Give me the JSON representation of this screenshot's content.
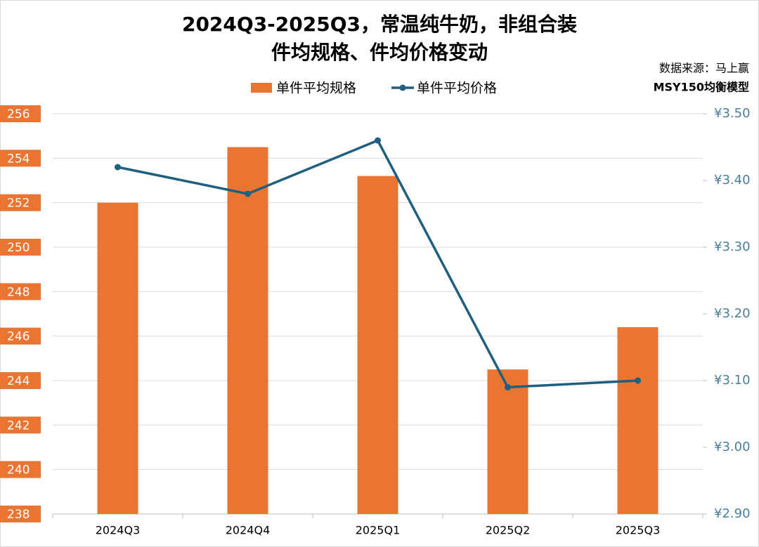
{
  "chart_data": {
    "type": "bar_line",
    "title": [
      "2024Q3-2025Q3，常温纯牛奶，非组合装",
      "件均规格、件均价格变动"
    ],
    "source": [
      "数据来源：马上赢",
      "MSY150均衡模型"
    ],
    "categories": [
      "2024Q3",
      "2024Q4",
      "2025Q1",
      "2025Q2",
      "2025Q3"
    ],
    "series": [
      {
        "name": "单件平均规格",
        "color": "#ea7533",
        "type": "bar",
        "values": [
          252.0,
          254.5,
          253.2,
          244.5,
          246.4
        ]
      },
      {
        "name": "单件平均价格",
        "color": "#1f5f7f",
        "type": "line",
        "axis": "y2",
        "values": [
          3.42,
          3.38,
          3.46,
          3.09,
          3.1
        ]
      }
    ],
    "ylim": [
      238,
      256
    ],
    "yticks": [
      238,
      240,
      242,
      244,
      246,
      248,
      250,
      252,
      254,
      256
    ],
    "y2lim": [
      2.9,
      3.5
    ],
    "y2ticks": [
      {
        "value": 2.9,
        "label": "¥2.90"
      },
      {
        "value": 3.0,
        "label": "¥3.00"
      },
      {
        "value": 3.1,
        "label": "¥3.10"
      },
      {
        "value": 3.2,
        "label": "¥3.20"
      },
      {
        "value": 3.3,
        "label": "¥3.30"
      },
      {
        "value": 3.4,
        "label": "¥3.40"
      },
      {
        "value": 3.5,
        "label": "¥3.50"
      }
    ],
    "grid": true,
    "legend": "top"
  }
}
